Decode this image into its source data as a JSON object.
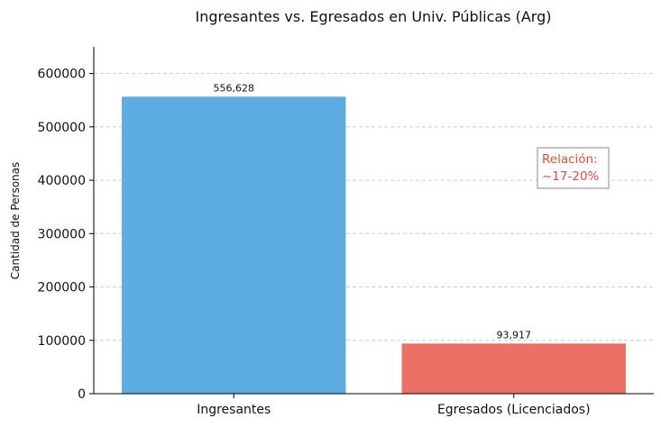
{
  "chart_data": {
    "type": "bar",
    "title": "Ingresantes vs. Egresados en Univ. Públicas (Arg)",
    "xlabel": "",
    "ylabel": "Cantidad de Personas",
    "categories": [
      "Ingresantes",
      "Egresados (Licenciados)"
    ],
    "values": [
      556628,
      93917
    ],
    "value_labels": [
      "556,628",
      "93,917"
    ],
    "colors": [
      "#5dade2",
      "#ec7063"
    ],
    "ylim": [
      0,
      650000
    ],
    "yticks": [
      0,
      100000,
      200000,
      300000,
      400000,
      500000,
      600000
    ],
    "ytick_labels": [
      "0",
      "100000",
      "200000",
      "300000",
      "400000",
      "500000",
      "600000"
    ],
    "grid": "horizontal dashed",
    "annotation": {
      "lines": [
        "Relación:",
        "~17-20%"
      ],
      "color": "#e74c3c"
    }
  }
}
